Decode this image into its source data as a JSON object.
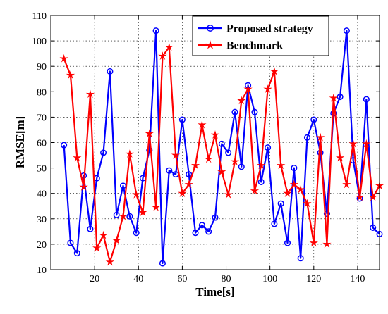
{
  "chart_data": {
    "type": "line",
    "xlabel": "Time[s]",
    "ylabel": "RMSE[m]",
    "xlim": [
      0,
      150
    ],
    "ylim": [
      10,
      110
    ],
    "xticks": [
      20,
      40,
      60,
      80,
      100,
      120,
      140
    ],
    "yticks": [
      10,
      20,
      30,
      40,
      50,
      60,
      70,
      80,
      90,
      100,
      110
    ],
    "grid": true,
    "legend_position": "top-right",
    "series": [
      {
        "name": "Proposed strategy",
        "color": "#0000ff",
        "marker": "circle",
        "x": [
          6,
          9,
          12,
          15,
          18,
          21,
          24,
          27,
          30,
          33,
          36,
          39,
          42,
          45,
          48,
          51,
          54,
          57,
          60,
          63,
          66,
          69,
          72,
          75,
          78,
          81,
          84,
          87,
          90,
          93,
          96,
          99,
          102,
          105,
          108,
          111,
          114,
          117,
          120,
          123,
          126,
          129,
          132,
          135,
          138,
          141,
          144,
          147,
          150
        ],
        "y": [
          59,
          20.5,
          16.5,
          47,
          26,
          46,
          56,
          88,
          31.5,
          43,
          31,
          24.5,
          46,
          57,
          104,
          12.5,
          49,
          47.5,
          69,
          47.5,
          24.5,
          27.5,
          25,
          30.5,
          59.5,
          56,
          72,
          50.5,
          82.5,
          72,
          44.5,
          58,
          28,
          36,
          20.5,
          50,
          14.5,
          62,
          69,
          56,
          32,
          71.5,
          78,
          104,
          53,
          38,
          77,
          26.5,
          24
        ]
      },
      {
        "name": "Benchmark",
        "color": "#ff0000",
        "marker": "star",
        "x": [
          6,
          9,
          12,
          15,
          18,
          21,
          24,
          27,
          30,
          33,
          36,
          39,
          42,
          45,
          48,
          51,
          54,
          57,
          60,
          63,
          66,
          69,
          72,
          75,
          78,
          81,
          84,
          87,
          90,
          93,
          96,
          99,
          102,
          105,
          108,
          111,
          114,
          117,
          120,
          123,
          126,
          129,
          132,
          135,
          138,
          141,
          144,
          147,
          150
        ],
        "y": [
          93,
          86.5,
          54,
          42.5,
          79,
          18.5,
          23.5,
          13,
          21.5,
          31,
          55.5,
          39.5,
          32.5,
          63.5,
          34.5,
          94,
          97.5,
          55,
          40,
          43.5,
          51,
          67,
          53.5,
          63,
          48.5,
          39.5,
          52.5,
          76.5,
          81,
          41,
          51,
          81,
          88,
          51,
          40,
          43.5,
          41.5,
          36,
          20.5,
          62,
          20,
          77.5,
          54,
          43.5,
          59.5,
          38.5,
          59.5,
          38.5,
          43
        ]
      }
    ]
  }
}
